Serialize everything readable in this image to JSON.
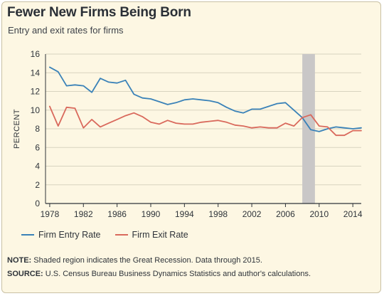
{
  "title": "Fewer New Firms Being Born",
  "subtitle": "Entry and exit rates for firms",
  "notes": {
    "note_label": "NOTE:",
    "note_text": " Shaded region indicates the Great Recession. Data through 2015.",
    "source_label": "SOURCE:",
    "source_text": " U.S. Census Bureau Business Dynamics Statistics and author's calculations."
  },
  "colors": {
    "entry": "#3a82b8",
    "exit": "#d9695c",
    "recession": "#c9c7c7",
    "grid": "#d8d3bf",
    "axis": "#2f343a"
  },
  "chart_data": {
    "type": "line",
    "title": "Fewer New Firms Being Born",
    "subtitle": "Entry and exit rates for firms",
    "xlabel": "",
    "ylabel": "PERCENT",
    "xlim": [
      1977.5,
      2015
    ],
    "ylim": [
      0,
      16
    ],
    "x_ticks": [
      1978,
      1982,
      1986,
      1990,
      1994,
      1998,
      2002,
      2006,
      2010,
      2014
    ],
    "y_ticks": [
      0,
      2,
      4,
      6,
      8,
      10,
      12,
      14,
      16
    ],
    "grid": "horizontal",
    "legend_position": "bottom-left",
    "shaded_region": {
      "label": "Great Recession",
      "x_range": [
        2008,
        2009.5
      ]
    },
    "x": [
      1978,
      1979,
      1980,
      1981,
      1982,
      1983,
      1984,
      1985,
      1986,
      1987,
      1988,
      1989,
      1990,
      1991,
      1992,
      1993,
      1994,
      1995,
      1996,
      1997,
      1998,
      1999,
      2000,
      2001,
      2002,
      2003,
      2004,
      2005,
      2006,
      2007,
      2008,
      2009,
      2010,
      2011,
      2012,
      2013,
      2014,
      2015
    ],
    "series": [
      {
        "name": "Firm Entry Rate",
        "values": [
          14.6,
          14.1,
          12.6,
          12.7,
          12.6,
          11.9,
          13.4,
          13.0,
          12.9,
          13.2,
          11.7,
          11.3,
          11.2,
          10.9,
          10.6,
          10.8,
          11.1,
          11.2,
          11.1,
          11.0,
          10.8,
          10.3,
          9.9,
          9.7,
          10.1,
          10.1,
          10.4,
          10.7,
          10.8,
          10.0,
          9.2,
          7.9,
          7.7,
          8.0,
          8.2,
          8.1,
          8.0,
          8.1
        ]
      },
      {
        "name": "Firm Exit Rate",
        "values": [
          10.4,
          8.3,
          10.3,
          10.2,
          8.1,
          9.0,
          8.2,
          8.6,
          9.0,
          9.4,
          9.7,
          9.3,
          8.7,
          8.5,
          8.9,
          8.6,
          8.5,
          8.5,
          8.7,
          8.8,
          8.9,
          8.7,
          8.4,
          8.3,
          8.1,
          8.2,
          8.1,
          8.1,
          8.6,
          8.3,
          9.2,
          9.5,
          8.3,
          8.2,
          7.3,
          7.3,
          7.8,
          7.8
        ]
      }
    ]
  }
}
